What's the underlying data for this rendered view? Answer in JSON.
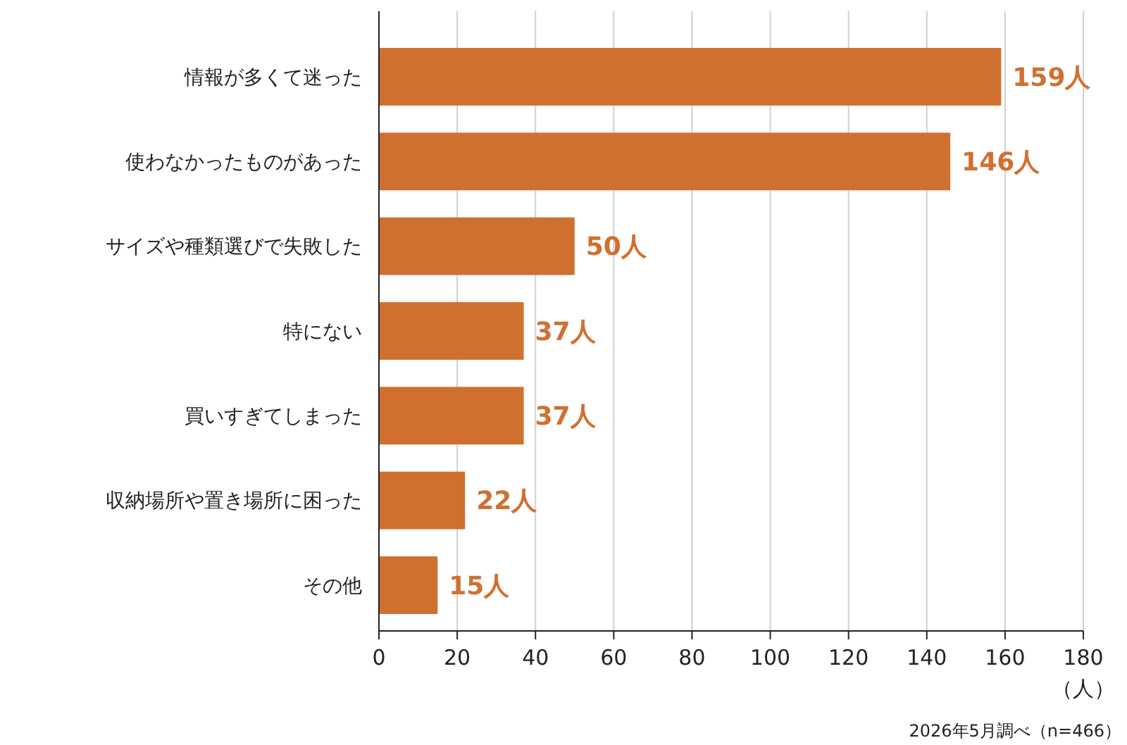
{
  "chart_data": {
    "type": "bar",
    "orientation": "horizontal",
    "categories": [
      "情報が多くて迷った",
      "使わなかったものがあった",
      "サイズや種類選びで失敗した",
      "特にない",
      "買いすぎてしまった",
      "収納場所や置き場所に困った",
      "その他"
    ],
    "values": [
      159,
      146,
      50,
      37,
      37,
      22,
      15
    ],
    "value_labels": [
      "159人",
      "146人",
      "50人",
      "37人",
      "37人",
      "22人",
      "15人"
    ],
    "color": "#d07030",
    "xlim": [
      0,
      180
    ],
    "xticks": [
      0,
      20,
      40,
      60,
      80,
      100,
      120,
      140,
      160,
      180
    ],
    "xlabel": "（人）",
    "grid": "x",
    "annotations": [
      "2026年5月調べ（n=466）"
    ]
  }
}
